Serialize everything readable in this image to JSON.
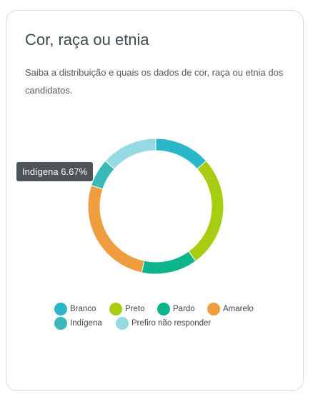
{
  "card": {
    "title": "Cor, raça ou etnia",
    "description": "Saiba a distribuição e quais os dados de cor, raça ou etnia dos candidatos."
  },
  "tooltip": {
    "label": "Indígena",
    "value": "6.67%"
  },
  "chart_data": {
    "type": "pie",
    "donut": true,
    "categories": [
      "Branco",
      "Preto",
      "Pardo",
      "Amarelo",
      "Indígena",
      "Prefiro não responder"
    ],
    "values": [
      13.33,
      26.67,
      13.33,
      26.67,
      6.67,
      13.33
    ],
    "colors": [
      "#2ab7c9",
      "#a7cd13",
      "#0db58e",
      "#ee9e3f",
      "#3bb9b9",
      "#95dae3"
    ],
    "legend_position": "bottom",
    "title": ""
  }
}
